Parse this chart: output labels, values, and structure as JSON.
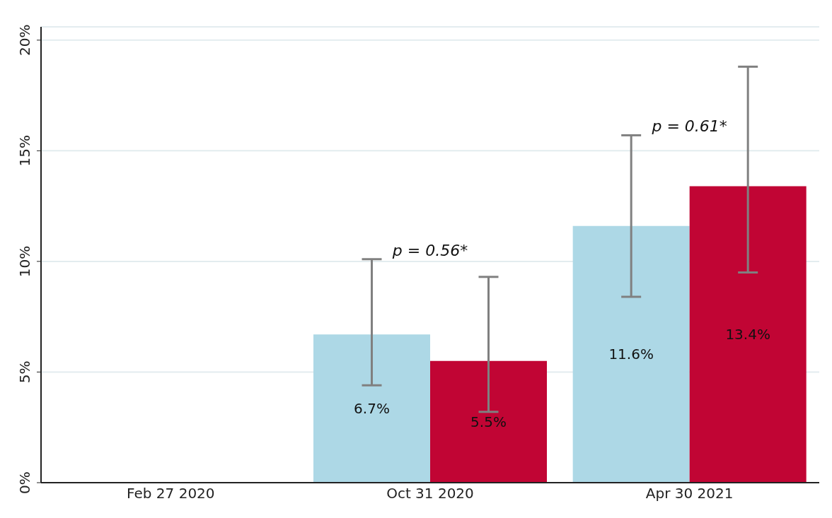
{
  "chart_data": {
    "type": "bar",
    "categories": [
      "Feb 27 2020",
      "Oct 31 2020",
      "Apr 30 2021"
    ],
    "series": [
      {
        "color": "#add8e6",
        "values": [
          null,
          6.7,
          11.6
        ],
        "value_labels": [
          null,
          "6.7%",
          "11.6%"
        ],
        "errors": [
          null,
          [
            4.4,
            10.1
          ],
          [
            8.4,
            15.7
          ]
        ]
      },
      {
        "color": "#c10534",
        "values": [
          null,
          5.5,
          13.4
        ],
        "value_labels": [
          null,
          "5.5%",
          "13.4%"
        ],
        "errors": [
          null,
          [
            3.2,
            9.3
          ],
          [
            9.5,
            18.8
          ]
        ]
      }
    ],
    "ylim": [
      0,
      20.6
    ],
    "yticks": [
      {
        "value": 0,
        "label": "0%"
      },
      {
        "value": 5,
        "label": "5%"
      },
      {
        "value": 10,
        "label": "10%"
      },
      {
        "value": 15,
        "label": "15%"
      },
      {
        "value": 20,
        "label": "20%"
      }
    ],
    "grid": "y",
    "annotations": [
      "p = 0.56*",
      "p = 0.61*"
    ]
  }
}
